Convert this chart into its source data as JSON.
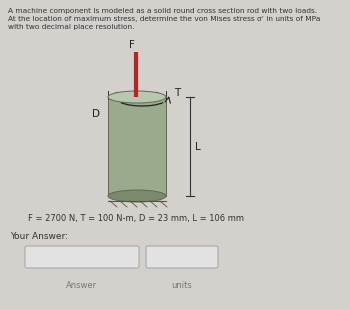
{
  "title_line1": "A machine component is modeled as a solid round cross section rod with two loads.",
  "title_line2": "At the location of maximum stress, determine the von Mises stress σ’ in units of MPa",
  "title_line3": "with two decimal place resolution.",
  "param_text": "F = 2700 N, T = 100 N-m, D = 23 mm, L = 106 mm",
  "your_answer_label": "Your Answer:",
  "answer_label": "Answer",
  "units_label": "units",
  "bg_color": "#d4d0cc",
  "cylinder_body_color": "#9aaa8c",
  "cylinder_top_color": "#b8c8b0",
  "cylinder_bottom_color": "#7a8a6c",
  "cylinder_edge_color": "#666655",
  "rod_color": "#bb2222",
  "text_color": "#333333",
  "label_color": "#222222",
  "box_facecolor": "#e2e2e2",
  "box_edgecolor": "#aaaaaa",
  "hatch_color": "#555544",
  "dim_color": "#333333"
}
